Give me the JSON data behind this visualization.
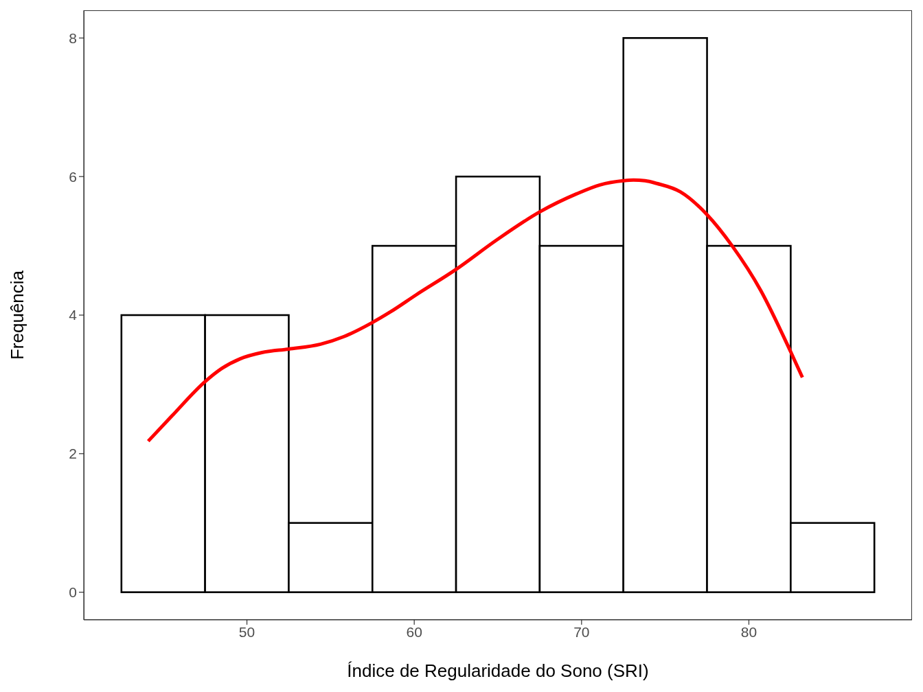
{
  "chart_data": {
    "type": "histogram",
    "xlabel": "Índice de Regularidade do Sono (SRI)",
    "ylabel": "Frequência",
    "bins": [
      42.5,
      47.5,
      52.5,
      57.5,
      62.5,
      67.5,
      72.5,
      77.5,
      82.5,
      87.5
    ],
    "values": [
      4,
      4,
      1,
      5,
      6,
      5,
      8,
      5,
      1
    ],
    "color": "#ffffff",
    "xlim": [
      40.25,
      89.75
    ],
    "ylim": [
      -0.4,
      8.4
    ],
    "xticks": [
      50,
      60,
      70,
      80
    ],
    "yticks": [
      0,
      2,
      4,
      6,
      8
    ],
    "grid": false,
    "marker": "none",
    "line_style": "solid",
    "series": [
      {
        "type": "line",
        "color": "#ff0000",
        "x": [
          44.1,
          45.5,
          47.5,
          48.5,
          49.6,
          50.9,
          52.5,
          54.4,
          55.8,
          57.4,
          58.6,
          60.1,
          62.5,
          64.9,
          67.5,
          69.7,
          71.1,
          72.5,
          73.1,
          73.8,
          74.5,
          75.9,
          77.5,
          79.0,
          80.7,
          82.5,
          83.2
        ],
        "values": [
          2.18,
          2.54,
          3.04,
          3.23,
          3.37,
          3.46,
          3.51,
          3.58,
          3.69,
          3.88,
          4.05,
          4.29,
          4.66,
          5.08,
          5.49,
          5.75,
          5.88,
          5.94,
          5.95,
          5.94,
          5.9,
          5.78,
          5.45,
          5.0,
          4.36,
          3.47,
          3.1
        ]
      }
    ]
  }
}
